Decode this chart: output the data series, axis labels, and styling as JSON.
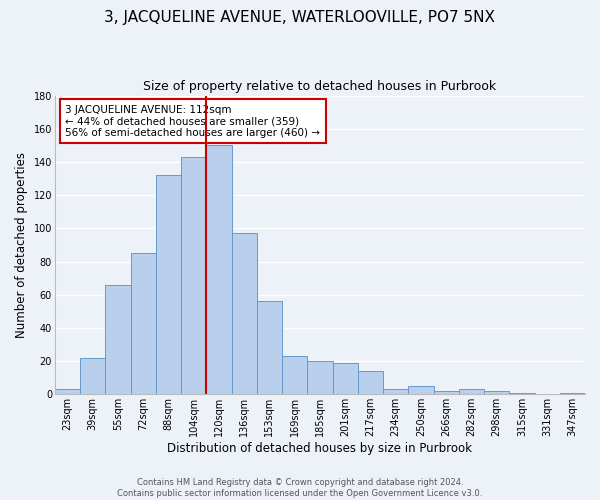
{
  "title": "3, JACQUELINE AVENUE, WATERLOOVILLE, PO7 5NX",
  "subtitle": "Size of property relative to detached houses in Purbrook",
  "xlabel": "Distribution of detached houses by size in Purbrook",
  "ylabel": "Number of detached properties",
  "bin_labels": [
    "23sqm",
    "39sqm",
    "55sqm",
    "72sqm",
    "88sqm",
    "104sqm",
    "120sqm",
    "136sqm",
    "153sqm",
    "169sqm",
    "185sqm",
    "201sqm",
    "217sqm",
    "234sqm",
    "250sqm",
    "266sqm",
    "282sqm",
    "298sqm",
    "315sqm",
    "331sqm",
    "347sqm"
  ],
  "bar_heights": [
    3,
    22,
    66,
    85,
    132,
    143,
    150,
    97,
    56,
    23,
    20,
    19,
    14,
    3,
    5,
    2,
    3,
    2,
    1,
    0,
    1
  ],
  "bar_color": "#b8d0eb",
  "bar_edge_color": "#6699cc",
  "vline_x": 5.5,
  "vline_color": "#cc0000",
  "annotation_text": "3 JACQUELINE AVENUE: 112sqm\n← 44% of detached houses are smaller (359)\n56% of semi-detached houses are larger (460) →",
  "annotation_box_color": "white",
  "annotation_box_edge": "#cc0000",
  "ylim": [
    0,
    180
  ],
  "yticks": [
    0,
    20,
    40,
    60,
    80,
    100,
    120,
    140,
    160,
    180
  ],
  "footer_line1": "Contains HM Land Registry data © Crown copyright and database right 2024.",
  "footer_line2": "Contains public sector information licensed under the Open Government Licence v3.0.",
  "bg_color": "#edf2f9",
  "grid_color": "white",
  "title_fontsize": 11,
  "subtitle_fontsize": 9,
  "axis_label_fontsize": 8.5,
  "tick_fontsize": 7,
  "footer_fontsize": 6,
  "ann_fontsize": 7.5
}
